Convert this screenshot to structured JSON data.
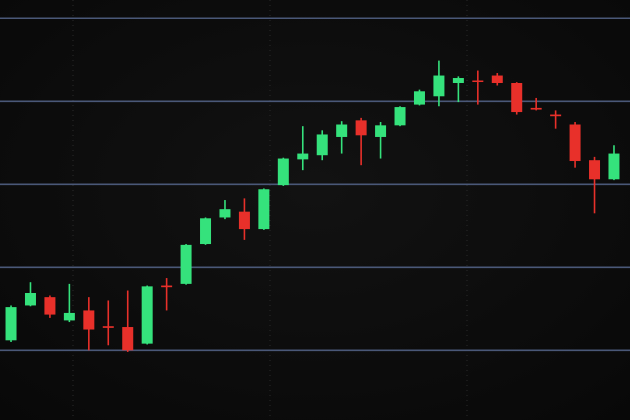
{
  "chart_data": {
    "type": "candlestick",
    "categories": [
      null,
      null,
      null,
      null,
      null,
      null,
      null,
      null,
      null,
      null,
      null,
      null,
      null,
      null,
      null,
      null,
      null,
      null,
      null,
      null,
      null,
      null,
      null,
      null,
      null,
      null,
      null,
      null,
      null,
      null,
      null,
      null
    ],
    "open": [
      0.12,
      0.54,
      0.64,
      0.36,
      0.48,
      0.29,
      0.28,
      0.08,
      0.78,
      0.8,
      1.28,
      1.6,
      1.67,
      1.46,
      1.99,
      2.3,
      2.35,
      2.57,
      2.77,
      2.57,
      2.71,
      2.96,
      3.06,
      3.22,
      3.25,
      3.31,
      3.22,
      2.92,
      2.84,
      2.72,
      2.29,
      2.06
    ],
    "high": [
      0.54,
      0.82,
      0.66,
      0.8,
      0.64,
      0.6,
      0.72,
      0.78,
      0.87,
      1.28,
      1.6,
      1.81,
      1.83,
      1.95,
      2.32,
      2.7,
      2.65,
      2.76,
      2.8,
      2.75,
      2.94,
      3.14,
      3.49,
      3.3,
      3.37,
      3.34,
      3.23,
      3.04,
      2.89,
      2.75,
      2.33,
      2.47
    ],
    "low": [
      0.1,
      0.53,
      0.39,
      0.34,
      0.0,
      0.06,
      -0.02,
      0.07,
      0.48,
      0.79,
      1.27,
      1.58,
      1.33,
      1.45,
      1.98,
      2.17,
      2.29,
      2.37,
      2.23,
      2.31,
      2.7,
      2.95,
      2.94,
      2.99,
      2.96,
      3.19,
      2.84,
      2.89,
      2.67,
      2.2,
      1.65,
      2.05
    ],
    "close": [
      0.52,
      0.69,
      0.43,
      0.45,
      0.25,
      0.27,
      0.0,
      0.77,
      0.76,
      1.27,
      1.59,
      1.7,
      1.46,
      1.94,
      2.31,
      2.37,
      2.6,
      2.72,
      2.59,
      2.71,
      2.93,
      3.12,
      3.31,
      3.28,
      3.24,
      3.22,
      2.87,
      2.9,
      2.82,
      2.28,
      2.06,
      2.37
    ],
    "up_color": "#35e27c",
    "down_color": "#e8302a",
    "ylim": [
      -0.84,
      4.22
    ],
    "yticks": [
      0,
      1,
      2,
      3,
      4
    ],
    "grid": true,
    "grid_color": "#4a5878"
  }
}
